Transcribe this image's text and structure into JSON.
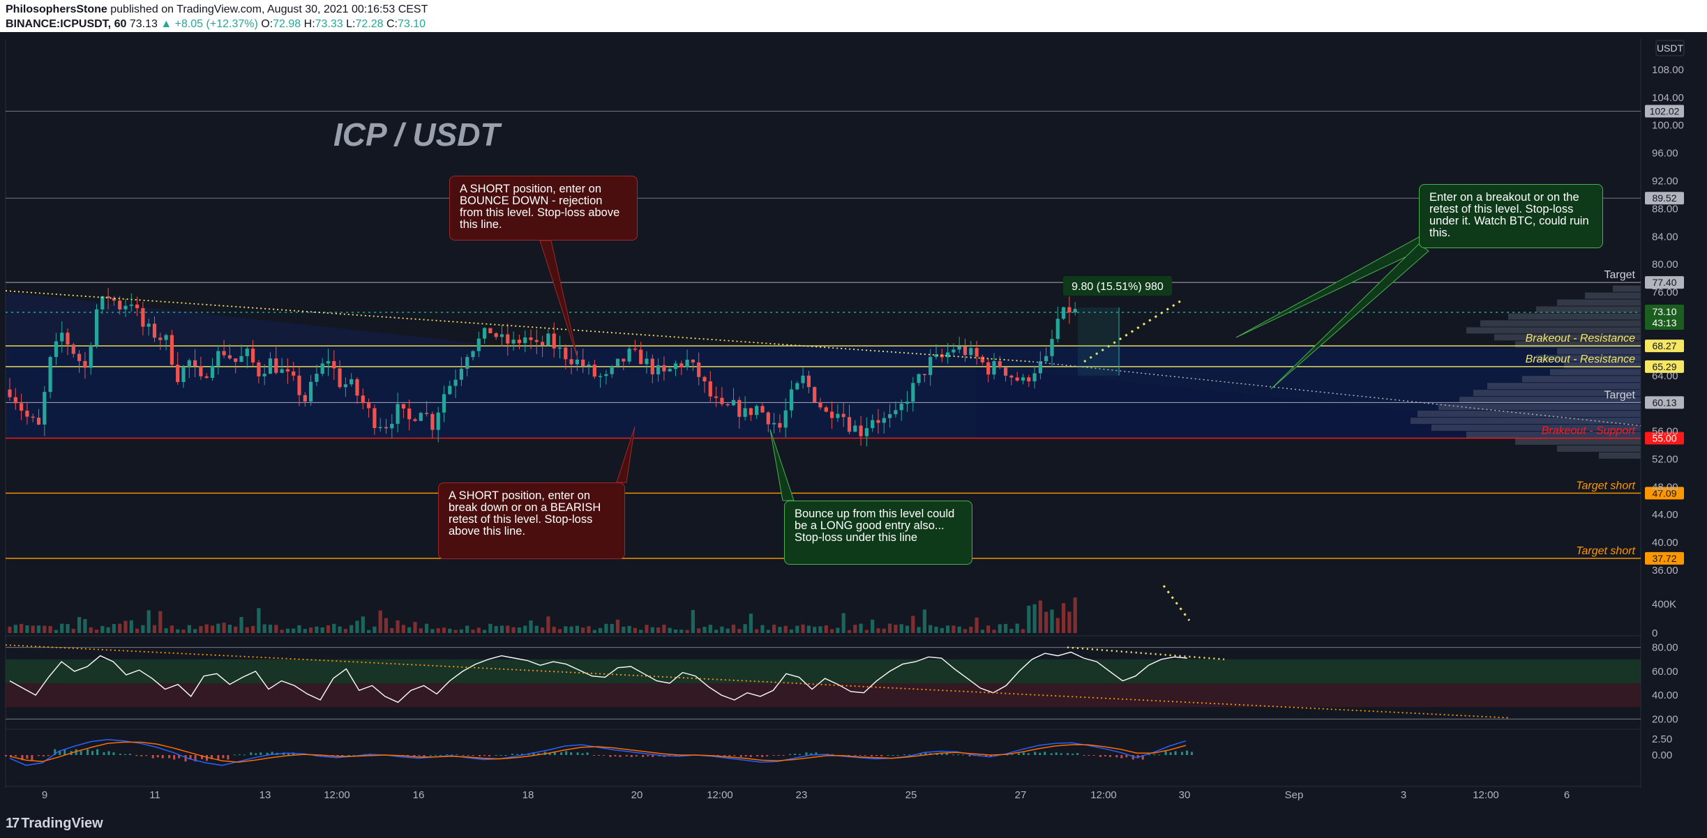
{
  "header": {
    "author": "PhilosophersStone",
    "published_text": "published on TradingView.com, August 30, 2021 00:16:53 CEST",
    "symbol": "BINANCE:ICPUSDT, 60",
    "last_price": "73.13",
    "change": "▲ +8.05 (+12.37%)",
    "open_label": "O:",
    "open": "72.98",
    "high_label": "H:",
    "high": "73.33",
    "low_label": "L:",
    "low": "72.28",
    "close_label": "C:",
    "close": "73.10"
  },
  "footer": {
    "logo_text": "TradingView",
    "logo_mark": "17"
  },
  "colors": {
    "background": "#131722",
    "up": "#26a69a",
    "down": "#ef5350",
    "resistance": "#f5e663",
    "support": "#ff1a1a",
    "target_short": "#ff9800",
    "target": "#b2b5be",
    "rsi_line": "#ffffff",
    "macd_line": "#2962ff",
    "signal_line": "#ff6d00"
  },
  "annotations": {
    "title": "ICP / USDT",
    "measure_label": "9.80 (15.51%) 980",
    "note_short_top": "A SHORT position, enter on BOUNCE DOWN - rejection from this level. Stop-loss above this line.",
    "note_short_bottom": "A SHORT position, enter on break down or on a BEARISH retest of this level. Stop-loss above this line.",
    "note_long": "Bounce up from this level could be a LONG good entry also... Stop-loss under this line",
    "note_breakout": "Enter on a breakout or on the retest of this level. Stop-loss under it. Watch BTC, could ruin this."
  },
  "chart_data": {
    "type": "candlestick",
    "symbol": "ICPUSDT",
    "currency_label": "USDT",
    "x_tick_labels": [
      "9",
      "11",
      "13",
      "12:00",
      "16",
      "18",
      "20",
      "12:00",
      "23",
      "25",
      "27",
      "12:00",
      "30",
      "Sep",
      "3",
      "12:00",
      "6"
    ],
    "price_axis_ticks": [
      108.0,
      104.0,
      100.0,
      96.0,
      92.0,
      88.0,
      84.0,
      80.0,
      76.0,
      64.0,
      56.0,
      52.0,
      48.0,
      44.0,
      40.0,
      36.0
    ],
    "ylim": [
      35,
      112
    ],
    "current_price": {
      "value": "73.10",
      "countdown": "43:13"
    },
    "price_levels": [
      {
        "value": 102.02,
        "label": "",
        "tag": "102.02",
        "kind": "gray"
      },
      {
        "value": 89.52,
        "label": "",
        "tag": "89.52",
        "kind": "gray"
      },
      {
        "value": 77.4,
        "label": "Target",
        "tag": "77.40",
        "kind": "target"
      },
      {
        "value": 68.27,
        "label": "Brakeout - Resistance",
        "tag": "68.27",
        "kind": "resistance"
      },
      {
        "value": 65.29,
        "label": "Brakeout - Resistance",
        "tag": "65.29",
        "kind": "resistance"
      },
      {
        "value": 60.13,
        "label": "Target",
        "tag": "60.13",
        "kind": "target"
      },
      {
        "value": 55.0,
        "label": "Brakeout - Support",
        "tag": "55.00",
        "kind": "support"
      },
      {
        "value": 47.09,
        "label": "Target short",
        "tag": "47.09",
        "kind": "target_short"
      },
      {
        "value": 37.72,
        "label": "Target short",
        "tag": "37.72",
        "kind": "target_short"
      }
    ],
    "price_path": [
      [
        0,
        62.0
      ],
      [
        3,
        58.0
      ],
      [
        5,
        56.5
      ],
      [
        7,
        66.0
      ],
      [
        9,
        70.0
      ],
      [
        11,
        67.5
      ],
      [
        13,
        65.0
      ],
      [
        15,
        73.5
      ],
      [
        17,
        75.5
      ],
      [
        19,
        74.0
      ],
      [
        21,
        74.8
      ],
      [
        23,
        71.0
      ],
      [
        25,
        70.0
      ],
      [
        27,
        69.0
      ],
      [
        29,
        64.0
      ],
      [
        31,
        66.0
      ],
      [
        33,
        63.0
      ],
      [
        35,
        66.5
      ],
      [
        37,
        67.5
      ],
      [
        39,
        66.0
      ],
      [
        41,
        67.0
      ],
      [
        43,
        64.5
      ],
      [
        45,
        66.0
      ],
      [
        47,
        64.5
      ],
      [
        49,
        63.0
      ],
      [
        51,
        60.5
      ],
      [
        53,
        64.0
      ],
      [
        55,
        66.5
      ],
      [
        57,
        63.0
      ],
      [
        59,
        62.5
      ],
      [
        61,
        60.0
      ],
      [
        63,
        57.5
      ],
      [
        65,
        57.0
      ],
      [
        67,
        59.0
      ],
      [
        69,
        57.5
      ],
      [
        71,
        59.5
      ],
      [
        73,
        57.0
      ],
      [
        75,
        61.5
      ],
      [
        77,
        64.0
      ],
      [
        79,
        67.5
      ],
      [
        81,
        69.0
      ],
      [
        83,
        70.5
      ],
      [
        85,
        69.0
      ],
      [
        87,
        68.5
      ],
      [
        89,
        69.5
      ],
      [
        91,
        68.0
      ],
      [
        93,
        69.0
      ],
      [
        95,
        67.5
      ],
      [
        97,
        66.5
      ],
      [
        99,
        65.5
      ],
      [
        101,
        64.0
      ],
      [
        103,
        63.5
      ],
      [
        105,
        65.5
      ],
      [
        107,
        67.0
      ],
      [
        109,
        66.5
      ],
      [
        111,
        65.0
      ],
      [
        113,
        64.0
      ],
      [
        115,
        65.5
      ],
      [
        117,
        66.0
      ],
      [
        119,
        64.0
      ],
      [
        121,
        61.0
      ],
      [
        123,
        59.0
      ],
      [
        125,
        59.5
      ],
      [
        127,
        58.5
      ],
      [
        129,
        59.5
      ],
      [
        131,
        58.0
      ],
      [
        133,
        56.5
      ],
      [
        135,
        61.0
      ],
      [
        137,
        63.5
      ],
      [
        139,
        61.0
      ],
      [
        141,
        58.5
      ],
      [
        143,
        59.5
      ],
      [
        145,
        57.0
      ],
      [
        147,
        56.0
      ],
      [
        149,
        58.0
      ],
      [
        151,
        57.5
      ],
      [
        153,
        58.0
      ],
      [
        155,
        61.0
      ],
      [
        157,
        63.5
      ],
      [
        159,
        66.0
      ],
      [
        161,
        66.5
      ],
      [
        163,
        68.0
      ],
      [
        165,
        67.5
      ],
      [
        167,
        66.5
      ],
      [
        169,
        65.0
      ],
      [
        171,
        65.5
      ],
      [
        173,
        64.0
      ],
      [
        175,
        63.0
      ],
      [
        177,
        65.0
      ],
      [
        179,
        66.0
      ],
      [
        181,
        72.0
      ],
      [
        183,
        73.5
      ],
      [
        184,
        73.1
      ]
    ],
    "rsi": {
      "ticks": [
        "80.00",
        "60.00",
        "40.00",
        "20.00"
      ],
      "overbought": 70,
      "oversold": 30,
      "ylim": [
        15,
        85
      ],
      "values": [
        52,
        46,
        40,
        55,
        68,
        60,
        64,
        73,
        68,
        57,
        61,
        54,
        45,
        49,
        39,
        56,
        58,
        49,
        55,
        60,
        45,
        52,
        48,
        41,
        36,
        54,
        62,
        44,
        48,
        39,
        34,
        44,
        48,
        41,
        52,
        60,
        66,
        70,
        73,
        71,
        69,
        65,
        68,
        66,
        61,
        56,
        55,
        63,
        64,
        58,
        52,
        50,
        59,
        56,
        47,
        40,
        36,
        42,
        39,
        44,
        58,
        55,
        45,
        54,
        49,
        43,
        42,
        52,
        60,
        66,
        68,
        72,
        71,
        62,
        54,
        46,
        42,
        48,
        60,
        70,
        75,
        73,
        76,
        71,
        68,
        60,
        52,
        56,
        65,
        70,
        72,
        71
      ]
    },
    "macd": {
      "ticks": [
        "2.50",
        "0.00"
      ],
      "ylim": [
        -4,
        4
      ],
      "macd": [
        -0.5,
        -1.6,
        -1.2,
        0.6,
        1.4,
        2.1,
        2.4,
        2.2,
        1.8,
        1.2,
        0.4,
        -0.6,
        -1.2,
        -1.6,
        -1.0,
        -0.4,
        0.1,
        0.3,
        0.2,
        -0.2,
        -0.4,
        -0.2,
        0.1,
        0.0,
        -0.3,
        -0.5,
        -0.3,
        -0.1,
        -0.4,
        -0.7,
        -0.6,
        -0.2,
        0.3,
        0.8,
        1.4,
        1.6,
        1.2,
        0.8,
        0.5,
        0.2,
        -0.1,
        -0.2,
        0.0,
        -0.2,
        -0.5,
        -0.8,
        -1.1,
        -1.0,
        -0.5,
        0.0,
        0.1,
        -0.2,
        -0.4,
        -0.6,
        -0.5,
        -0.2,
        0.4,
        0.6,
        0.5,
        0.0,
        -0.3,
        0.2,
        0.9,
        1.5,
        1.8,
        1.9,
        1.5,
        1.0,
        0.4,
        -0.4,
        0.4,
        1.4,
        2.2
      ],
      "signal": [
        -0.2,
        -0.8,
        -1.0,
        -0.3,
        0.5,
        1.2,
        1.8,
        2.0,
        2.0,
        1.7,
        1.1,
        0.4,
        -0.3,
        -0.9,
        -1.1,
        -0.8,
        -0.4,
        -0.1,
        0.1,
        0.0,
        -0.2,
        -0.2,
        -0.1,
        0.0,
        -0.1,
        -0.3,
        -0.3,
        -0.2,
        -0.3,
        -0.5,
        -0.6,
        -0.4,
        -0.1,
        0.3,
        0.8,
        1.2,
        1.3,
        1.1,
        0.8,
        0.5,
        0.2,
        0.0,
        0.0,
        -0.1,
        -0.3,
        -0.5,
        -0.8,
        -0.9,
        -0.7,
        -0.4,
        -0.1,
        -0.1,
        -0.3,
        -0.4,
        -0.5,
        -0.3,
        0.0,
        0.3,
        0.4,
        0.2,
        0.0,
        0.1,
        0.5,
        1.0,
        1.4,
        1.6,
        1.6,
        1.3,
        0.9,
        0.3,
        0.3,
        0.8,
        1.5
      ]
    },
    "volume": {
      "ticks": [
        "400K",
        "0"
      ],
      "ylim": [
        0,
        750000
      ]
    }
  }
}
